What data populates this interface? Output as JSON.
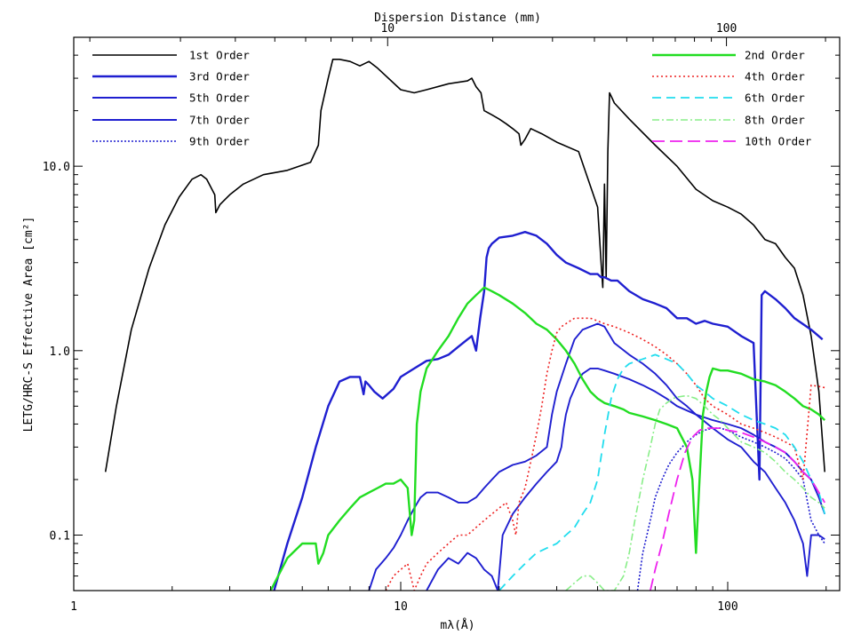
{
  "chart_data": {
    "type": "line",
    "title": "",
    "xlabel": "mλ(Å)",
    "ylabel": "LETG/HRC-S Effective Area [cm²]",
    "x2label": "Dispersion Distance (mm)",
    "xscale": "log",
    "yscale": "log",
    "xlim": [
      1,
      220
    ],
    "ylim": [
      0.05,
      50
    ],
    "x_ticks": [
      1,
      10,
      100
    ],
    "x_tick_labels": [
      "1",
      "10",
      "100"
    ],
    "y_ticks": [
      0.1,
      1.0,
      10.0
    ],
    "y_tick_labels": [
      "0.1",
      "1.0",
      "10.0"
    ],
    "x2_ticks": [
      10,
      100
    ],
    "x2_tick_labels": [
      "10",
      "100"
    ],
    "x2_offset_in_x_units": 0.88,
    "grid": false,
    "legend_left": [
      "1st Order",
      "3rd Order",
      "5th Order",
      "7th Order",
      "9th Order"
    ],
    "legend_right": [
      "2nd Order",
      "4th Order",
      "6th Order",
      "8th Order",
      "10th Order"
    ],
    "series": [
      {
        "name": "1st Order",
        "color": "#000000",
        "dash": "",
        "width": 1.6,
        "x": [
          1.25,
          1.35,
          1.5,
          1.7,
          1.9,
          2.1,
          2.3,
          2.45,
          2.55,
          2.7,
          2.72,
          2.8,
          3.0,
          3.3,
          3.8,
          4.5,
          5.3,
          5.6,
          5.7,
          6.0,
          6.2,
          6.5,
          7.0,
          7.5,
          8.0,
          8.5,
          10,
          11,
          12,
          14,
          16,
          16.5,
          17,
          17.6,
          18,
          19,
          20,
          21,
          22,
          23,
          23.3,
          24,
          25,
          27,
          30,
          35,
          40,
          41,
          41.5,
          42,
          42.5,
          43,
          43.5,
          44,
          44.5,
          45,
          50,
          60,
          70,
          80,
          90,
          100,
          110,
          120,
          130,
          140,
          150,
          160,
          170,
          180,
          190,
          198
        ],
        "y": [
          0.22,
          0.5,
          1.3,
          2.8,
          4.8,
          6.8,
          8.5,
          9.0,
          8.5,
          7.0,
          5.6,
          6.2,
          7.0,
          8.0,
          9.0,
          9.5,
          10.5,
          13,
          20,
          30,
          38,
          38,
          37,
          35,
          37,
          34,
          26,
          25,
          26,
          28,
          29,
          30,
          27,
          25,
          20,
          19,
          18,
          17,
          16,
          15,
          13,
          14,
          16,
          15,
          13.5,
          12,
          6,
          3,
          2.2,
          8,
          2.5,
          12,
          25,
          24,
          23,
          22,
          18,
          13,
          10,
          7.5,
          6.5,
          6,
          5.5,
          4.8,
          4,
          3.8,
          3.2,
          2.8,
          2,
          1.2,
          0.6,
          0.22
        ]
      },
      {
        "name": "3rd Order",
        "color": "#1f1fd0",
        "dash": "",
        "width": 2.4,
        "x": [
          4.1,
          4.5,
          5.0,
          5.5,
          6.0,
          6.5,
          7.0,
          7.5,
          7.7,
          7.8,
          8.0,
          8.3,
          8.8,
          9.5,
          10,
          11,
          12,
          13,
          14,
          15,
          16,
          16.5,
          17,
          17.5,
          18,
          18.3,
          18.6,
          19,
          20,
          22,
          24,
          26,
          28,
          30,
          32,
          35,
          38,
          40,
          41,
          42,
          44,
          46,
          50,
          55,
          60,
          65,
          70,
          75,
          80,
          85,
          90,
          100,
          110,
          120,
          125,
          127,
          130,
          140,
          150,
          160,
          180,
          195
        ],
        "y": [
          0.05,
          0.09,
          0.16,
          0.3,
          0.5,
          0.68,
          0.72,
          0.72,
          0.58,
          0.68,
          0.65,
          0.6,
          0.55,
          0.62,
          0.72,
          0.8,
          0.88,
          0.9,
          0.95,
          1.05,
          1.15,
          1.2,
          1.0,
          1.5,
          2.1,
          3.2,
          3.6,
          3.8,
          4.1,
          4.2,
          4.4,
          4.2,
          3.8,
          3.3,
          3.0,
          2.8,
          2.6,
          2.6,
          2.5,
          2.5,
          2.4,
          2.4,
          2.1,
          1.9,
          1.8,
          1.7,
          1.5,
          1.5,
          1.4,
          1.45,
          1.4,
          1.35,
          1.2,
          1.1,
          0.2,
          2.0,
          2.1,
          1.9,
          1.7,
          1.5,
          1.3,
          1.15
        ]
      },
      {
        "name": "5th Order",
        "color": "#1f1fd0",
        "dash": "",
        "width": 1.9,
        "x": [
          12,
          13,
          14,
          15,
          16,
          17,
          18,
          19,
          19.8,
          20.5,
          22,
          24,
          26,
          28,
          30,
          31,
          31.5,
          32,
          33,
          34,
          35,
          36,
          38,
          40,
          42,
          45,
          50,
          55,
          60,
          65,
          70,
          80,
          90,
          100,
          110,
          120,
          130,
          140,
          150,
          160,
          170,
          180,
          190,
          198
        ],
        "y": [
          0.05,
          0.065,
          0.075,
          0.07,
          0.08,
          0.075,
          0.065,
          0.06,
          0.05,
          0.1,
          0.13,
          0.16,
          0.19,
          0.22,
          0.25,
          0.3,
          0.38,
          0.45,
          0.55,
          0.62,
          0.7,
          0.75,
          0.8,
          0.8,
          0.78,
          0.75,
          0.7,
          0.65,
          0.6,
          0.55,
          0.5,
          0.45,
          0.42,
          0.4,
          0.38,
          0.35,
          0.32,
          0.3,
          0.28,
          0.25,
          0.22,
          0.2,
          0.16,
          0.13
        ]
      },
      {
        "name": "7th Order",
        "color": "#1f1fd0",
        "dash": "",
        "width": 1.9,
        "x": [
          8.0,
          8.4,
          9.0,
          9.5,
          10,
          10.5,
          11,
          11.5,
          12,
          13,
          14,
          15,
          16,
          17,
          18,
          19,
          20,
          22,
          24,
          26,
          28,
          29,
          30,
          32,
          34,
          36,
          38,
          40,
          42,
          45,
          50,
          55,
          60,
          65,
          70,
          75,
          80,
          90,
          100,
          110,
          120,
          130,
          140,
          150,
          160,
          170,
          175,
          180,
          190,
          198
        ],
        "y": [
          0.05,
          0.065,
          0.075,
          0.085,
          0.1,
          0.12,
          0.14,
          0.16,
          0.17,
          0.17,
          0.16,
          0.15,
          0.15,
          0.16,
          0.18,
          0.2,
          0.22,
          0.24,
          0.25,
          0.27,
          0.3,
          0.45,
          0.6,
          0.85,
          1.15,
          1.3,
          1.35,
          1.4,
          1.35,
          1.1,
          0.95,
          0.85,
          0.75,
          0.65,
          0.55,
          0.5,
          0.45,
          0.38,
          0.33,
          0.3,
          0.25,
          0.22,
          0.18,
          0.15,
          0.12,
          0.09,
          0.06,
          0.1,
          0.1,
          0.095
        ]
      },
      {
        "name": "9th Order",
        "color": "#1f1fd0",
        "dash": "2,2",
        "width": 1.6,
        "x": [
          53,
          55,
          58,
          60,
          63,
          66,
          70,
          75,
          80,
          85,
          90,
          95,
          100,
          110,
          120,
          130,
          140,
          150,
          160,
          170,
          180,
          190,
          198
        ],
        "y": [
          0.05,
          0.08,
          0.12,
          0.16,
          0.2,
          0.24,
          0.28,
          0.32,
          0.35,
          0.37,
          0.38,
          0.38,
          0.37,
          0.34,
          0.32,
          0.3,
          0.28,
          0.26,
          0.23,
          0.2,
          0.12,
          0.1,
          0.09
        ]
      },
      {
        "name": "2nd Order",
        "color": "#22dd22",
        "dash": "",
        "width": 2.4,
        "x": [
          4.0,
          4.5,
          5.0,
          5.5,
          5.6,
          5.8,
          6.0,
          6.5,
          7.0,
          7.5,
          8.0,
          8.5,
          9.0,
          9.5,
          10,
          10.5,
          10.8,
          11,
          11.2,
          11.5,
          12,
          13,
          14,
          15,
          16,
          17,
          18,
          19,
          20,
          22,
          24,
          26,
          28,
          30,
          32,
          34,
          36,
          38,
          40,
          42,
          45,
          48,
          50,
          55,
          60,
          65,
          70,
          75,
          78,
          80,
          82,
          84,
          86,
          88,
          90,
          95,
          100,
          110,
          120,
          130,
          140,
          150,
          160,
          170,
          180,
          190,
          198
        ],
        "y": [
          0.05,
          0.075,
          0.09,
          0.09,
          0.07,
          0.08,
          0.1,
          0.12,
          0.14,
          0.16,
          0.17,
          0.18,
          0.19,
          0.19,
          0.2,
          0.18,
          0.1,
          0.12,
          0.4,
          0.6,
          0.8,
          1.0,
          1.2,
          1.5,
          1.8,
          2.0,
          2.2,
          2.1,
          2.0,
          1.8,
          1.6,
          1.4,
          1.3,
          1.15,
          1.0,
          0.85,
          0.7,
          0.6,
          0.55,
          0.52,
          0.5,
          0.48,
          0.46,
          0.44,
          0.42,
          0.4,
          0.38,
          0.3,
          0.2,
          0.08,
          0.2,
          0.45,
          0.6,
          0.72,
          0.8,
          0.78,
          0.78,
          0.75,
          0.7,
          0.68,
          0.65,
          0.6,
          0.55,
          0.5,
          0.48,
          0.45,
          0.42
        ]
      },
      {
        "name": "4th Order",
        "color": "#ee2222",
        "dash": "2,3",
        "width": 1.6,
        "x": [
          9.0,
          9.5,
          10,
          10.5,
          11,
          11.5,
          12,
          13,
          14,
          15,
          16,
          17,
          18,
          19,
          20,
          21,
          22,
          22.5,
          23,
          24,
          25,
          26,
          27,
          28,
          29,
          30,
          31,
          32,
          33,
          34,
          35,
          36,
          38,
          40,
          42,
          45,
          50,
          55,
          60,
          65,
          70,
          75,
          80,
          85,
          90,
          100,
          110,
          120,
          130,
          140,
          150,
          160,
          170,
          180,
          190,
          198
        ],
        "y": [
          0.05,
          0.06,
          0.065,
          0.07,
          0.05,
          0.06,
          0.07,
          0.08,
          0.09,
          0.1,
          0.1,
          0.11,
          0.12,
          0.13,
          0.14,
          0.15,
          0.12,
          0.1,
          0.15,
          0.18,
          0.25,
          0.35,
          0.5,
          0.75,
          1.0,
          1.25,
          1.35,
          1.4,
          1.45,
          1.5,
          1.5,
          1.5,
          1.5,
          1.45,
          1.4,
          1.35,
          1.25,
          1.15,
          1.05,
          0.95,
          0.85,
          0.75,
          0.65,
          0.55,
          0.5,
          0.45,
          0.4,
          0.38,
          0.36,
          0.34,
          0.32,
          0.3,
          0.2,
          0.65,
          0.64,
          0.63
        ]
      },
      {
        "name": "6th Order",
        "color": "#22ddee",
        "dash": "10,6",
        "width": 1.8,
        "x": [
          20,
          22,
          24,
          26,
          28,
          30,
          32,
          34,
          36,
          38,
          40,
          42,
          44,
          46,
          48,
          50,
          55,
          60,
          65,
          70,
          75,
          80,
          85,
          90,
          100,
          110,
          120,
          130,
          140,
          150,
          160,
          170,
          180,
          190,
          198
        ],
        "y": [
          0.05,
          0.06,
          0.07,
          0.08,
          0.085,
          0.09,
          0.1,
          0.11,
          0.13,
          0.15,
          0.2,
          0.35,
          0.55,
          0.7,
          0.8,
          0.85,
          0.9,
          0.95,
          0.9,
          0.85,
          0.75,
          0.65,
          0.6,
          0.55,
          0.5,
          0.45,
          0.42,
          0.4,
          0.38,
          0.35,
          0.3,
          0.25,
          0.2,
          0.17,
          0.13
        ]
      },
      {
        "name": "8th Order",
        "color": "#88ee88",
        "dash": "8,3,2,3",
        "width": 1.6,
        "x": [
          32,
          34,
          36,
          38,
          40,
          42,
          45,
          48,
          50,
          52,
          55,
          58,
          60,
          62,
          65,
          68,
          70,
          75,
          80,
          85,
          90,
          95,
          100,
          110,
          120,
          130,
          140,
          150,
          160,
          170,
          180,
          190,
          198
        ],
        "y": [
          0.05,
          0.055,
          0.06,
          0.06,
          0.055,
          0.05,
          0.05,
          0.06,
          0.08,
          0.12,
          0.2,
          0.3,
          0.4,
          0.48,
          0.52,
          0.55,
          0.56,
          0.57,
          0.55,
          0.5,
          0.45,
          0.42,
          0.38,
          0.32,
          0.3,
          0.28,
          0.25,
          0.22,
          0.2,
          0.18,
          0.16,
          0.15,
          0.14
        ]
      },
      {
        "name": "10th Order",
        "color": "#ee22ee",
        "dash": "14,6",
        "width": 1.8,
        "x": [
          58,
          60,
          63,
          66,
          70,
          74,
          78,
          82,
          86,
          90,
          95,
          100,
          110,
          120,
          130,
          140,
          150,
          160,
          170,
          180,
          190,
          198
        ],
        "y": [
          0.05,
          0.065,
          0.09,
          0.13,
          0.2,
          0.28,
          0.34,
          0.37,
          0.38,
          0.38,
          0.38,
          0.37,
          0.36,
          0.34,
          0.32,
          0.3,
          0.28,
          0.25,
          0.22,
          0.2,
          0.17,
          0.15
        ]
      }
    ]
  }
}
